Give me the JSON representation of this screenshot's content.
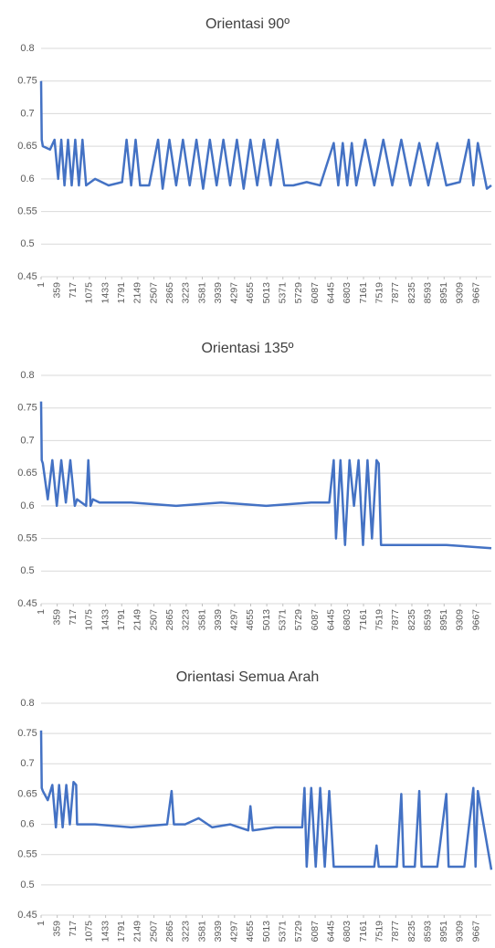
{
  "chart_data": [
    {
      "type": "line",
      "title": "Orientasi 90º",
      "color": "#4472c4",
      "grid": true,
      "xlim": [
        1,
        10000
      ],
      "ylim": [
        0.45,
        0.8
      ],
      "yticks": [
        0.45,
        0.5,
        0.55,
        0.6,
        0.65,
        0.7,
        0.75,
        0.8
      ],
      "xticks": [
        1,
        359,
        717,
        1075,
        1433,
        1791,
        2149,
        2507,
        2865,
        3223,
        3581,
        3939,
        4297,
        4655,
        5013,
        5371,
        5729,
        6087,
        6445,
        6803,
        7161,
        7519,
        7877,
        8235,
        8593,
        8951,
        9309,
        9667
      ],
      "x": [
        1,
        15,
        40,
        200,
        300,
        380,
        450,
        520,
        600,
        680,
        760,
        840,
        920,
        1000,
        1200,
        1500,
        1800,
        1900,
        2000,
        2100,
        2200,
        2400,
        2600,
        2700,
        2850,
        3000,
        3150,
        3300,
        3450,
        3600,
        3750,
        3900,
        4050,
        4200,
        4350,
        4500,
        4650,
        4800,
        4950,
        5100,
        5250,
        5400,
        5600,
        5900,
        6200,
        6500,
        6600,
        6700,
        6800,
        6900,
        7000,
        7200,
        7400,
        7600,
        7800,
        8000,
        8200,
        8400,
        8600,
        8800,
        9000,
        9300,
        9500,
        9600,
        9700,
        9900,
        10000
      ],
      "values": [
        0.75,
        0.66,
        0.65,
        0.645,
        0.66,
        0.6,
        0.66,
        0.59,
        0.66,
        0.59,
        0.66,
        0.59,
        0.66,
        0.59,
        0.6,
        0.59,
        0.595,
        0.66,
        0.59,
        0.66,
        0.59,
        0.59,
        0.66,
        0.585,
        0.66,
        0.59,
        0.66,
        0.59,
        0.66,
        0.585,
        0.66,
        0.59,
        0.66,
        0.59,
        0.66,
        0.585,
        0.66,
        0.59,
        0.66,
        0.59,
        0.66,
        0.59,
        0.59,
        0.595,
        0.59,
        0.655,
        0.59,
        0.655,
        0.59,
        0.655,
        0.59,
        0.66,
        0.59,
        0.66,
        0.59,
        0.66,
        0.59,
        0.655,
        0.59,
        0.655,
        0.59,
        0.595,
        0.66,
        0.59,
        0.655,
        0.585,
        0.59
      ]
    },
    {
      "type": "line",
      "title": "Orientasi 135º",
      "color": "#4472c4",
      "grid": true,
      "xlim": [
        1,
        10000
      ],
      "ylim": [
        0.45,
        0.8
      ],
      "yticks": [
        0.45,
        0.5,
        0.55,
        0.6,
        0.65,
        0.7,
        0.75,
        0.8
      ],
      "xticks": [
        1,
        359,
        717,
        1075,
        1433,
        1791,
        2149,
        2507,
        2865,
        3223,
        3581,
        3939,
        4297,
        4655,
        5013,
        5371,
        5729,
        6087,
        6445,
        6803,
        7161,
        7519,
        7877,
        8235,
        8593,
        8951,
        9309,
        9667
      ],
      "x": [
        1,
        15,
        40,
        150,
        250,
        350,
        450,
        550,
        650,
        750,
        800,
        1000,
        1050,
        1100,
        1150,
        1300,
        2000,
        3000,
        4000,
        5000,
        6000,
        6400,
        6500,
        6550,
        6650,
        6750,
        6850,
        6950,
        7050,
        7150,
        7250,
        7350,
        7450,
        7500,
        7550,
        7600,
        8000,
        9000,
        10000
      ],
      "values": [
        0.76,
        0.67,
        0.665,
        0.61,
        0.67,
        0.6,
        0.67,
        0.605,
        0.67,
        0.6,
        0.61,
        0.6,
        0.67,
        0.6,
        0.61,
        0.605,
        0.605,
        0.6,
        0.605,
        0.6,
        0.605,
        0.605,
        0.67,
        0.55,
        0.67,
        0.54,
        0.67,
        0.6,
        0.67,
        0.54,
        0.67,
        0.55,
        0.67,
        0.665,
        0.54,
        0.54,
        0.54,
        0.54,
        0.535
      ]
    },
    {
      "type": "line",
      "title": "Orientasi Semua Arah",
      "color": "#4472c4",
      "grid": true,
      "xlim": [
        1,
        10000
      ],
      "ylim": [
        0.45,
        0.8
      ],
      "yticks": [
        0.45,
        0.5,
        0.55,
        0.6,
        0.65,
        0.7,
        0.75,
        0.8
      ],
      "xticks": [
        1,
        359,
        717,
        1075,
        1433,
        1791,
        2149,
        2507,
        2865,
        3223,
        3581,
        3939,
        4297,
        4655,
        5013,
        5371,
        5729,
        6087,
        6445,
        6803,
        7161,
        7519,
        7877,
        8235,
        8593,
        8951,
        9309,
        9667
      ],
      "x": [
        1,
        15,
        40,
        150,
        250,
        330,
        400,
        480,
        560,
        640,
        720,
        780,
        800,
        1200,
        2000,
        2800,
        2900,
        2950,
        3200,
        3500,
        3800,
        4200,
        4600,
        4650,
        4700,
        5200,
        5700,
        5800,
        5850,
        5900,
        6000,
        6100,
        6200,
        6300,
        6400,
        6500,
        7000,
        7400,
        7450,
        7500,
        7900,
        8000,
        8050,
        8300,
        8400,
        8450,
        8800,
        9000,
        9050,
        9400,
        9600,
        9650,
        9700,
        10000
      ],
      "values": [
        0.755,
        0.66,
        0.655,
        0.64,
        0.665,
        0.595,
        0.665,
        0.595,
        0.665,
        0.6,
        0.67,
        0.665,
        0.6,
        0.6,
        0.595,
        0.6,
        0.655,
        0.6,
        0.6,
        0.61,
        0.595,
        0.6,
        0.59,
        0.63,
        0.59,
        0.595,
        0.595,
        0.595,
        0.66,
        0.53,
        0.66,
        0.53,
        0.66,
        0.53,
        0.655,
        0.53,
        0.53,
        0.53,
        0.565,
        0.53,
        0.53,
        0.65,
        0.53,
        0.53,
        0.655,
        0.53,
        0.53,
        0.65,
        0.53,
        0.53,
        0.66,
        0.53,
        0.655,
        0.525
      ]
    }
  ]
}
